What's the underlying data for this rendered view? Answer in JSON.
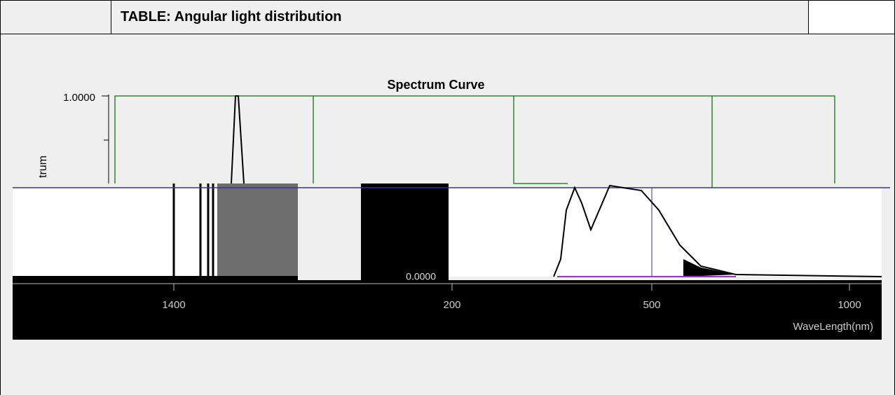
{
  "header": {
    "title": "TABLE: Angular light distribution"
  },
  "figure": {
    "title": "Spectrum Curve",
    "y_label": "trum",
    "y_ticks": [
      "1.0000",
      "0.0000"
    ],
    "x_ticks": [
      "1400",
      "200",
      "500",
      "1000"
    ],
    "x_label": "WaveLength(nm)"
  }
}
